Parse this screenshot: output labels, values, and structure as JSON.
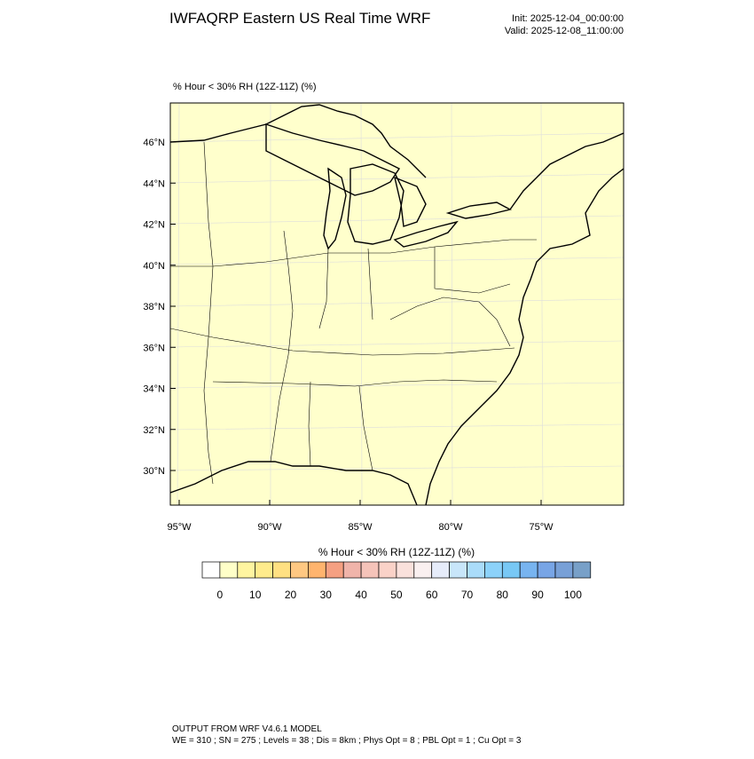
{
  "header": {
    "title": "IWFAQRP Eastern US Real Time WRF",
    "init": "Init: 2025-12-04_00:00:00",
    "valid": "Valid: 2025-12-08_11:00:00"
  },
  "map": {
    "subtitle": "% Hour < 30% RH (12Z-11Z)   (%)",
    "fill": "#ffffcc",
    "lat_labels": [
      "46°N",
      "44°N",
      "42°N",
      "40°N",
      "38°N",
      "36°N",
      "34°N",
      "32°N",
      "30°N"
    ],
    "lon_labels": [
      "95°W",
      "90°W",
      "85°W",
      "80°W",
      "75°W"
    ]
  },
  "colorbar": {
    "title": "% Hour < 30% RH (12Z-11Z)  (%)",
    "colors": [
      "#ffffff",
      "#ffffc8",
      "#fff5a0",
      "#ffeb8c",
      "#ffe082",
      "#ffc882",
      "#ffb46e",
      "#f5a082",
      "#f0b4aa",
      "#f5c3b9",
      "#fad2c8",
      "#fae1dc",
      "#faf0f0",
      "#e6ecfa",
      "#c8e6fa",
      "#aadcfa",
      "#8cd2fa",
      "#78c8f5",
      "#78b4f0",
      "#78a5e6",
      "#78a0d7",
      "#78a0c8"
    ],
    "labels": [
      0,
      10,
      20,
      30,
      40,
      50,
      60,
      70,
      80,
      90,
      100
    ]
  },
  "footer": {
    "line1": "OUTPUT FROM WRF V4.6.1 MODEL",
    "line2": "WE = 310 ; SN = 275 ; Levels = 38 ; Dis = 8km ; Phys Opt = 8 ; PBL Opt = 1 ; Cu Opt = 3"
  }
}
